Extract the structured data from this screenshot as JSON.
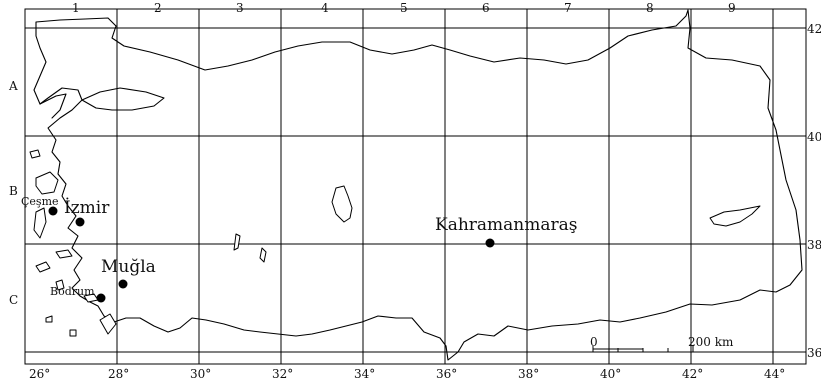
{
  "map": {
    "column_labels": [
      "1",
      "2",
      "3",
      "4",
      "5",
      "6",
      "7",
      "8",
      "9"
    ],
    "row_labels": [
      "A",
      "B",
      "C"
    ],
    "longitude_labels": [
      "26°",
      "28°",
      "30°",
      "32°",
      "34°",
      "36°",
      "38°",
      "40°",
      "42°",
      "44°"
    ],
    "latitude_labels": [
      "42",
      "40",
      "38",
      "36"
    ],
    "cities": [
      {
        "name": "Çeşme",
        "size": "small"
      },
      {
        "name": "İzmir",
        "size": "large"
      },
      {
        "name": "Muğla",
        "size": "large"
      },
      {
        "name": "Bodrum",
        "size": "small"
      },
      {
        "name": "Kahramanmaraş",
        "size": "large"
      }
    ],
    "scale_bar": {
      "start_label": "0",
      "end_label": "200 km"
    },
    "colors": {
      "ink": "#000000",
      "background": "#ffffff"
    }
  }
}
